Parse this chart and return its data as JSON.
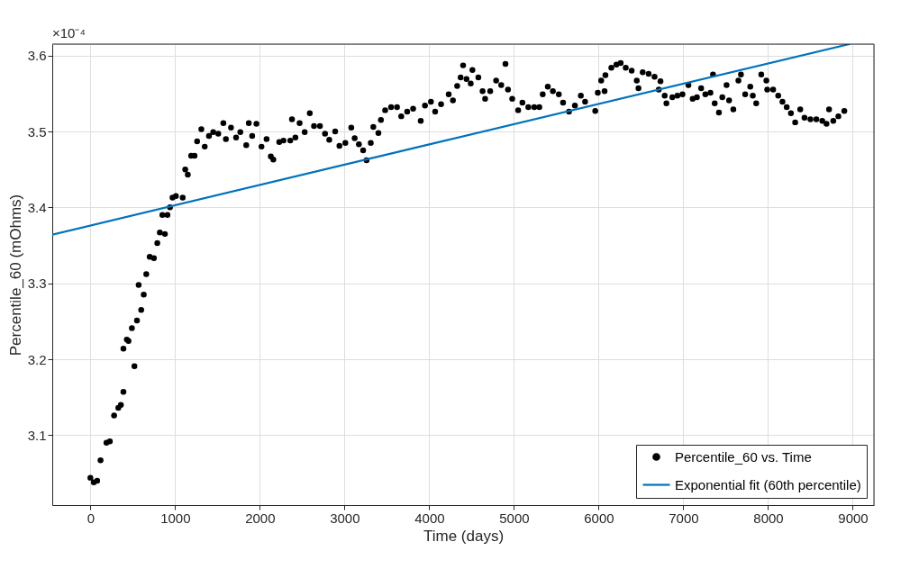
{
  "chart_data": {
    "type": "scatter",
    "xlabel": "Time (days)",
    "ylabel": "Percentile_60 (mOhms)",
    "annotations": [
      "×10⁻⁴"
    ],
    "xlim": [
      -450,
      9250
    ],
    "xticks": [
      0,
      1000,
      2000,
      3000,
      4000,
      5000,
      6000,
      7000,
      8000,
      9000
    ],
    "ylim": [
      3.008,
      3.615
    ],
    "yticks": [
      3.1,
      3.2,
      3.3,
      3.4,
      3.5,
      3.6
    ],
    "grid": true,
    "legend": "bottom right",
    "series": [
      {
        "name": "Percentile_60 vs. Time",
        "marker": "circle",
        "color": "#000000",
        "x": [
          0,
          40,
          80,
          120,
          190,
          230,
          280,
          330,
          360,
          390,
          390,
          430,
          450,
          490,
          520,
          550,
          570,
          600,
          630,
          660,
          700,
          750,
          790,
          820,
          880,
          850,
          910,
          940,
          970,
          1010,
          1090,
          1120,
          1150,
          1190,
          1230,
          1260,
          1310,
          1350,
          1400,
          1450,
          1510,
          1570,
          1600,
          1660,
          1720,
          1770,
          1840,
          1870,
          1910,
          1960,
          2020,
          2080,
          2130,
          2160,
          2230,
          2280,
          2360,
          2420,
          2380,
          2470,
          2530,
          2590,
          2640,
          2710,
          2770,
          2820,
          2890,
          2940,
          3010,
          3080,
          3120,
          3170,
          3220,
          3260,
          3310,
          3340,
          3400,
          3430,
          3480,
          3550,
          3620,
          3670,
          3740,
          3810,
          3900,
          3950,
          4020,
          4070,
          4140,
          4230,
          4280,
          4330,
          4370,
          4400,
          4440,
          4490,
          4510,
          4580,
          4630,
          4660,
          4720,
          4790,
          4850,
          4900,
          4930,
          4980,
          5050,
          5100,
          5170,
          5240,
          5300,
          5340,
          5400,
          5460,
          5530,
          5580,
          5650,
          5720,
          5790,
          5840,
          5960,
          5990,
          6030,
          6070,
          6080,
          6150,
          6210,
          6260,
          6320,
          6390,
          6450,
          6470,
          6520,
          6590,
          6660,
          6710,
          6730,
          6780,
          6800,
          6870,
          6930,
          6990,
          7060,
          7110,
          7160,
          7210,
          7260,
          7320,
          7350,
          7370,
          7420,
          7460,
          7510,
          7540,
          7590,
          7650,
          7680,
          7730,
          7790,
          7820,
          7860,
          7920,
          7980,
          7990,
          8060,
          8120,
          8170,
          8220,
          8270,
          8320,
          8380,
          8430,
          8500,
          8570,
          8640,
          8690,
          8720,
          8770,
          8830,
          8900
        ],
        "values": [
          3.044,
          3.038,
          3.04,
          3.067,
          3.09,
          3.092,
          3.126,
          3.136,
          3.14,
          3.157,
          3.214,
          3.226,
          3.224,
          3.241,
          3.191,
          3.251,
          3.298,
          3.265,
          3.285,
          3.312,
          3.335,
          3.333,
          3.353,
          3.367,
          3.365,
          3.39,
          3.39,
          3.4,
          3.413,
          3.415,
          3.413,
          3.45,
          3.443,
          3.468,
          3.468,
          3.487,
          3.503,
          3.48,
          3.494,
          3.499,
          3.497,
          3.511,
          3.49,
          3.505,
          3.492,
          3.499,
          3.482,
          3.511,
          3.494,
          3.51,
          3.48,
          3.49,
          3.467,
          3.463,
          3.486,
          3.488,
          3.488,
          3.492,
          3.516,
          3.511,
          3.499,
          3.524,
          3.507,
          3.507,
          3.497,
          3.489,
          3.5,
          3.481,
          3.485,
          3.505,
          3.491,
          3.483,
          3.475,
          3.462,
          3.485,
          3.506,
          3.498,
          3.515,
          3.528,
          3.532,
          3.532,
          3.52,
          3.526,
          3.53,
          3.514,
          3.534,
          3.539,
          3.526,
          3.536,
          3.549,
          3.541,
          3.56,
          3.571,
          3.587,
          3.569,
          3.563,
          3.581,
          3.571,
          3.553,
          3.543,
          3.553,
          3.567,
          3.561,
          3.589,
          3.555,
          3.543,
          3.528,
          3.538,
          3.532,
          3.532,
          3.532,
          3.549,
          3.559,
          3.553,
          3.549,
          3.538,
          3.526,
          3.534,
          3.547,
          3.539,
          3.527,
          3.551,
          3.567,
          3.553,
          3.574,
          3.584,
          3.588,
          3.59,
          3.584,
          3.58,
          3.567,
          3.557,
          3.578,
          3.576,
          3.572,
          3.555,
          3.566,
          3.547,
          3.537,
          3.545,
          3.547,
          3.549,
          3.561,
          3.543,
          3.545,
          3.557,
          3.549,
          3.551,
          3.575,
          3.537,
          3.525,
          3.545,
          3.561,
          3.541,
          3.529,
          3.567,
          3.575,
          3.549,
          3.559,
          3.547,
          3.537,
          3.575,
          3.567,
          3.555,
          3.555,
          3.547,
          3.539,
          3.532,
          3.524,
          3.512,
          3.529,
          3.518,
          3.516,
          3.516,
          3.514,
          3.51,
          3.529,
          3.514,
          3.52,
          3.527
        ]
      },
      {
        "name": "Exponential fit (60th percentile)",
        "type": "line",
        "line_style": "solid",
        "color": "#0072bd",
        "x": [
          -450,
          4000,
          8960
        ],
        "values": [
          3.364,
          3.483,
          3.615
        ]
      }
    ]
  }
}
